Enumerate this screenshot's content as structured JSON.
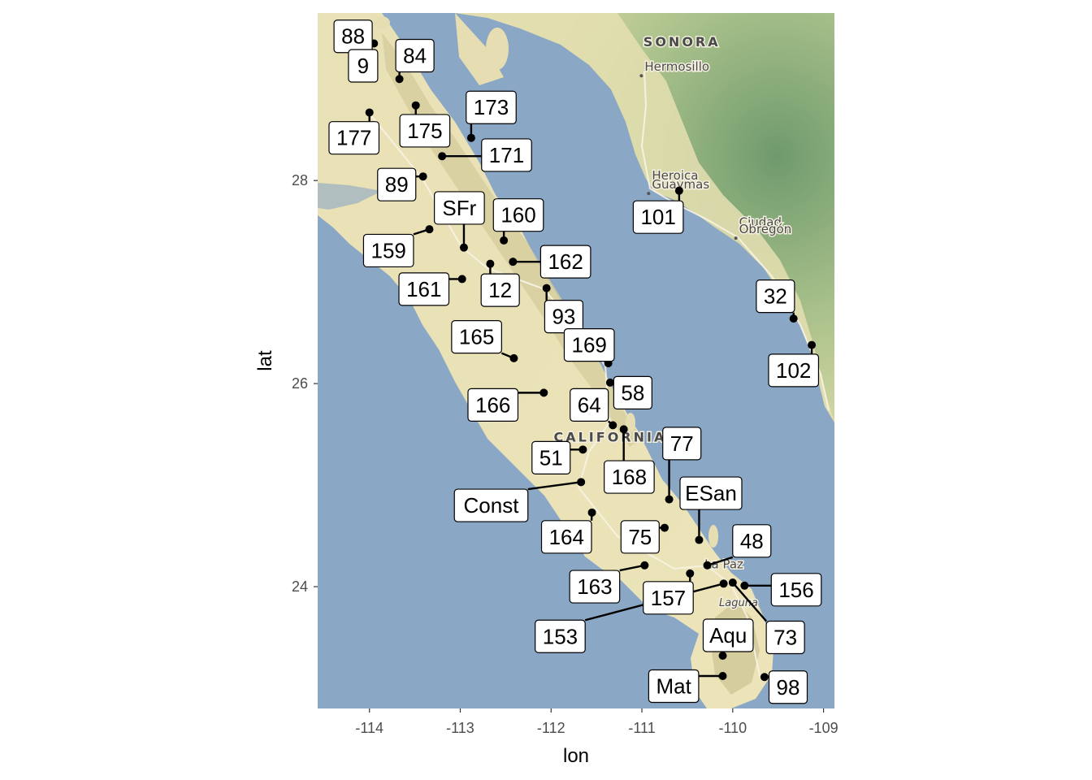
{
  "axes": {
    "x_label": "lon",
    "y_label": "lat",
    "x_ticks": [
      -114,
      -113,
      -112,
      -111,
      -110,
      -109
    ],
    "x_tick_labels": [
      "-114",
      "-113",
      "-112",
      "-111",
      "-110",
      "-109"
    ],
    "y_ticks": [
      24,
      26,
      28
    ],
    "y_tick_labels": [
      "24",
      "26",
      "28"
    ],
    "xlim": [
      -114.57,
      -108.88
    ],
    "ylim": [
      22.8,
      29.65
    ]
  },
  "basemap": {
    "place_names": [
      {
        "text": "SONORA",
        "lon": -110.56,
        "lat": 29.32,
        "style": "region"
      },
      {
        "text": "Hermosillo",
        "lon": -110.97,
        "lat": 29.08,
        "style": "city",
        "dot": true
      },
      {
        "text": "Heroica",
        "lon": -110.89,
        "lat": 28.01,
        "style": "city",
        "dot": false
      },
      {
        "text": "Guaymas",
        "lon": -110.89,
        "lat": 27.92,
        "style": "city",
        "dot": true
      },
      {
        "text": "Ciudad",
        "lon": -109.93,
        "lat": 27.55,
        "style": "city",
        "dot": false
      },
      {
        "text": "Obregón",
        "lon": -109.93,
        "lat": 27.48,
        "style": "city",
        "dot": true
      },
      {
        "text": "CALIFORNIA",
        "lon": -111.35,
        "lat": 25.43,
        "style": "region"
      },
      {
        "text": "La Paz",
        "lon": -110.31,
        "lat": 24.18,
        "style": "city",
        "dot": false
      },
      {
        "text": "Laguna",
        "lon": -110.15,
        "lat": 23.81,
        "style": "italic",
        "dot": false
      }
    ],
    "colors": {
      "water": "#8aa7c6",
      "land": "#ebe4b8",
      "land_highland": "#cfc79a",
      "mainland_green": "#a8c08a",
      "mainland_dark": "#6f9a6d",
      "road": "#f7f3e6"
    }
  },
  "chart_data": {
    "type": "scatter",
    "description_axis": "lon vs lat",
    "point_color": "#000000",
    "points": [
      {
        "label": "88",
        "lon": -113.95,
        "lat": 29.35,
        "label_lon": -114.18,
        "label_lat": 29.42
      },
      {
        "label": "9",
        "lon": -113.95,
        "lat": 29.25,
        "label_lon": -114.07,
        "label_lat": 29.13
      },
      {
        "label": "84",
        "lon": -113.67,
        "lat": 29.0,
        "label_lon": -113.5,
        "label_lat": 29.23
      },
      {
        "label": "177",
        "lon": -114.0,
        "lat": 28.67,
        "label_lon": -114.17,
        "label_lat": 28.42
      },
      {
        "label": "175",
        "lon": -113.49,
        "lat": 28.74,
        "label_lon": -113.39,
        "label_lat": 28.49
      },
      {
        "label": "173",
        "lon": -112.88,
        "lat": 28.42,
        "label_lon": -112.66,
        "label_lat": 28.72
      },
      {
        "label": "171",
        "lon": -113.2,
        "lat": 28.24,
        "label_lon": -112.49,
        "label_lat": 28.25
      },
      {
        "label": "89",
        "lon": -113.41,
        "lat": 28.04,
        "label_lon": -113.7,
        "label_lat": 27.96
      },
      {
        "label": "101",
        "lon": -110.59,
        "lat": 27.9,
        "label_lon": -110.82,
        "label_lat": 27.64
      },
      {
        "label": "SFr",
        "lon": -112.96,
        "lat": 27.34,
        "label_lon": -113.01,
        "label_lat": 27.73
      },
      {
        "label": "160",
        "lon": -112.52,
        "lat": 27.41,
        "label_lon": -112.36,
        "label_lat": 27.66
      },
      {
        "label": "159",
        "lon": -113.34,
        "lat": 27.52,
        "label_lon": -113.79,
        "label_lat": 27.31
      },
      {
        "label": "162",
        "lon": -112.42,
        "lat": 27.2,
        "label_lon": -111.84,
        "label_lat": 27.2
      },
      {
        "label": "12",
        "lon": -112.67,
        "lat": 27.18,
        "label_lon": -112.56,
        "label_lat": 26.92
      },
      {
        "label": "161",
        "lon": -112.98,
        "lat": 27.03,
        "label_lon": -113.4,
        "label_lat": 26.93
      },
      {
        "label": "93",
        "lon": -112.05,
        "lat": 26.94,
        "label_lon": -111.86,
        "label_lat": 26.66
      },
      {
        "label": "32",
        "lon": -109.33,
        "lat": 26.64,
        "label_lon": -109.53,
        "label_lat": 26.86
      },
      {
        "label": "102",
        "lon": -109.13,
        "lat": 26.38,
        "label_lon": -109.33,
        "label_lat": 26.13
      },
      {
        "label": "165",
        "lon": -112.41,
        "lat": 26.25,
        "label_lon": -112.82,
        "label_lat": 26.46
      },
      {
        "label": "169",
        "lon": -111.37,
        "lat": 26.2,
        "label_lon": -111.58,
        "label_lat": 26.38
      },
      {
        "label": "58",
        "lon": -111.35,
        "lat": 26.01,
        "label_lon": -111.1,
        "label_lat": 25.91
      },
      {
        "label": "166",
        "lon": -112.08,
        "lat": 25.91,
        "label_lon": -112.64,
        "label_lat": 25.79
      },
      {
        "label": "64",
        "lon": -111.32,
        "lat": 25.59,
        "label_lon": -111.58,
        "label_lat": 25.79
      },
      {
        "label": "168",
        "lon": -111.2,
        "lat": 25.55,
        "label_lon": -111.14,
        "label_lat": 25.08
      },
      {
        "label": "51",
        "lon": -111.65,
        "lat": 25.35,
        "label_lon": -112.0,
        "label_lat": 25.27
      },
      {
        "label": "77",
        "lon": -110.7,
        "lat": 24.86,
        "label_lon": -110.56,
        "label_lat": 25.41
      },
      {
        "label": "Const",
        "lon": -111.67,
        "lat": 25.03,
        "label_lon": -112.66,
        "label_lat": 24.8
      },
      {
        "label": "ESan",
        "lon": -110.37,
        "lat": 24.46,
        "label_lon": -110.24,
        "label_lat": 24.92
      },
      {
        "label": "164",
        "lon": -111.55,
        "lat": 24.73,
        "label_lon": -111.83,
        "label_lat": 24.49
      },
      {
        "label": "75",
        "lon": -110.75,
        "lat": 24.58,
        "label_lon": -111.02,
        "label_lat": 24.49
      },
      {
        "label": "48",
        "lon": -110.28,
        "lat": 24.21,
        "label_lon": -109.79,
        "label_lat": 24.45
      },
      {
        "label": "163",
        "lon": -110.97,
        "lat": 24.21,
        "label_lon": -111.52,
        "label_lat": 24.0
      },
      {
        "label": "157",
        "lon": -110.47,
        "lat": 24.13,
        "label_lon": -110.71,
        "label_lat": 23.89
      },
      {
        "label": "156",
        "lon": -109.87,
        "lat": 24.01,
        "label_lon": -109.3,
        "label_lat": 23.97
      },
      {
        "label": "153",
        "lon": -110.1,
        "lat": 24.03,
        "label_lon": -111.9,
        "label_lat": 23.51
      },
      {
        "label": "73",
        "lon": -110.0,
        "lat": 24.04,
        "label_lon": -109.42,
        "label_lat": 23.5
      },
      {
        "label": "Aqu",
        "lon": -110.11,
        "lat": 23.32,
        "label_lon": -110.05,
        "label_lat": 23.52
      },
      {
        "label": "Mat",
        "lon": -110.11,
        "lat": 23.12,
        "label_lon": -110.65,
        "label_lat": 23.02
      },
      {
        "label": "98",
        "lon": -109.65,
        "lat": 23.11,
        "label_lon": -109.39,
        "label_lat": 23.01
      }
    ]
  }
}
